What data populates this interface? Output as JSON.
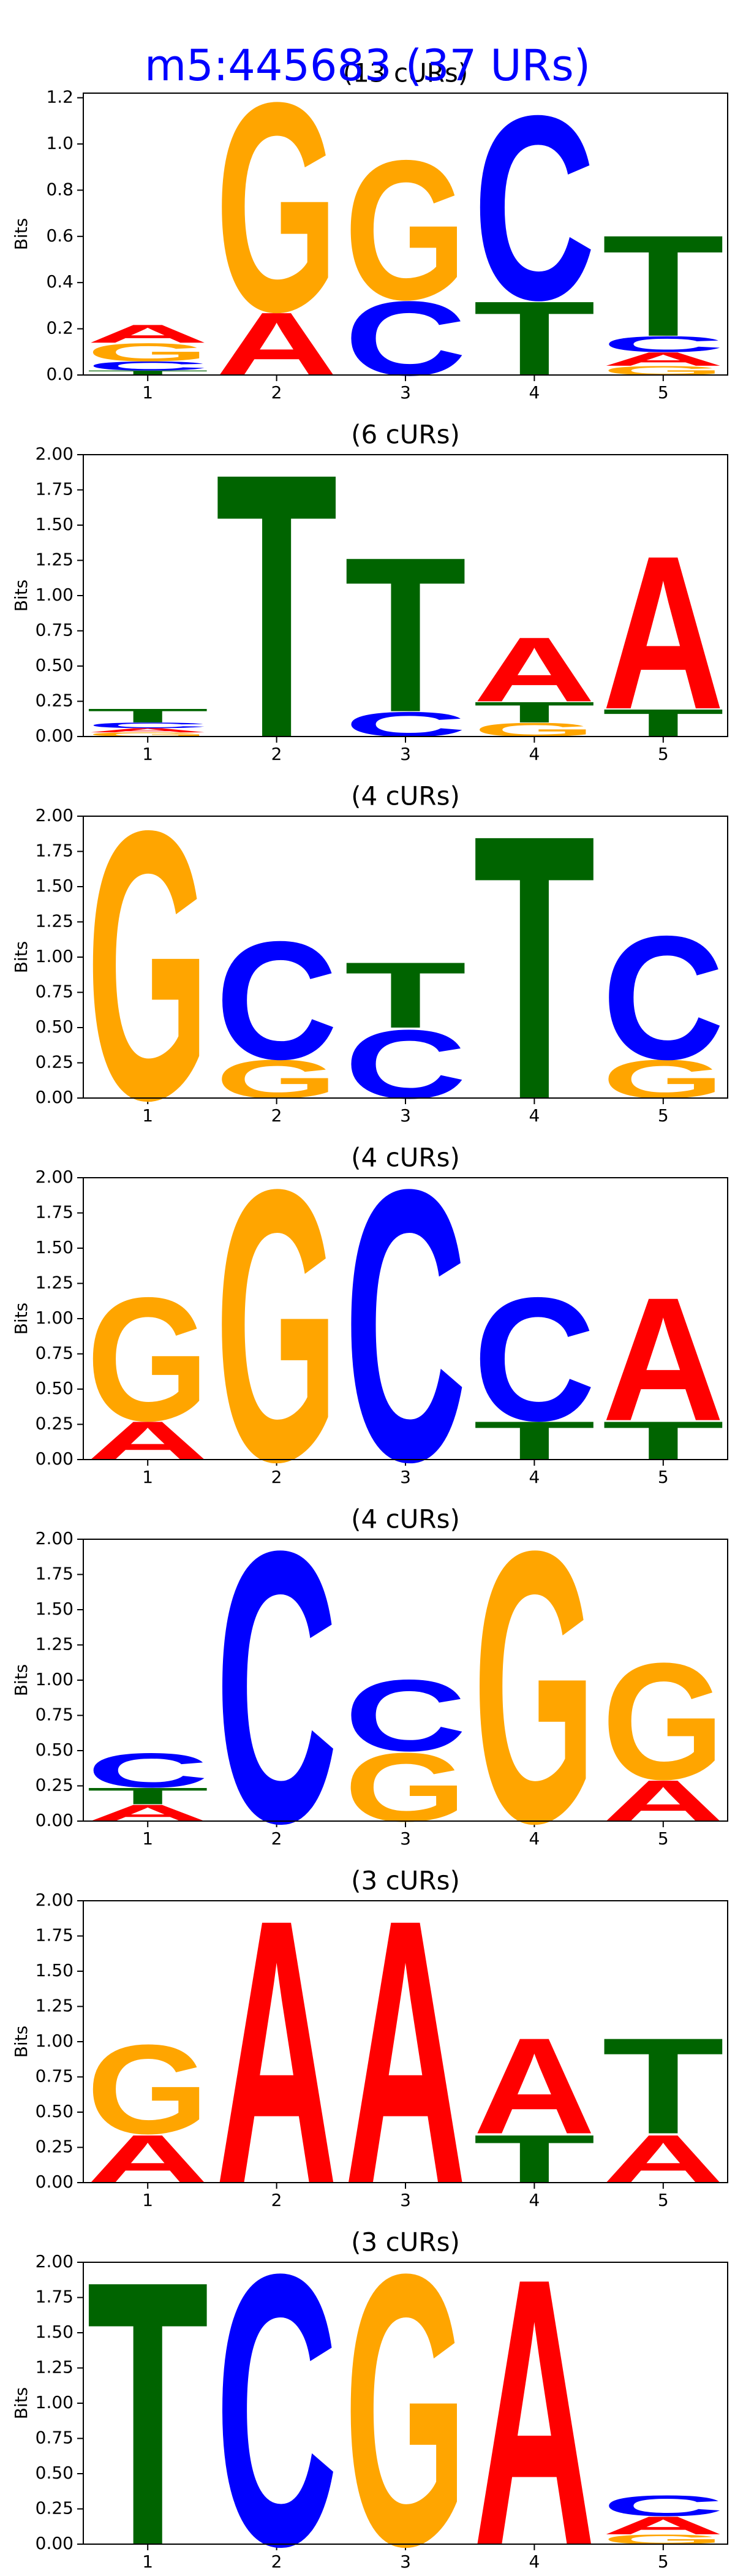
{
  "title": "m5:445683 (37 URs)",
  "title_color": "#0000ff",
  "chart_data": [
    {
      "type": "logo",
      "title": "(13 cURs)",
      "ylabel": "Bits",
      "xlim": [
        0.5,
        5.5
      ],
      "xticks": [
        1,
        2,
        3,
        4,
        5
      ],
      "ylim": [
        0,
        1.22
      ],
      "yticks": [
        {
          "value": 0,
          "label": "0.0"
        },
        0.2,
        0.4,
        0.6,
        0.8,
        {
          "value": 1,
          "label": "1.0"
        },
        1.2
      ],
      "letter_colors": {
        "A": "#ff0000",
        "C": "#0000ff",
        "G": "#ffa500",
        "T": "#006400"
      },
      "stacks": [
        {
          "letters": [
            "T",
            "C",
            "G",
            "A"
          ],
          "values": [
            0.02,
            0.04,
            0.08,
            0.08
          ]
        },
        {
          "letters": [
            "A",
            "G"
          ],
          "values": [
            0.28,
            0.93
          ]
        },
        {
          "letters": [
            "C",
            "G"
          ],
          "values": [
            0.33,
            0.62
          ]
        },
        {
          "letters": [
            "T",
            "C"
          ],
          "values": [
            0.33,
            0.82
          ]
        },
        {
          "letters": [
            "G",
            "A",
            "C",
            "T"
          ],
          "values": [
            0.04,
            0.06,
            0.07,
            0.45
          ]
        }
      ]
    },
    {
      "type": "logo",
      "title": "(6 cURs)",
      "ylabel": "Bits",
      "xlim": [
        0.5,
        5.5
      ],
      "xticks": [
        1,
        2,
        3,
        4,
        5
      ],
      "ylim": [
        0,
        2
      ],
      "yticks": [
        {
          "value": 0,
          "label": "0.00"
        },
        0.25,
        {
          "value": 0.5,
          "label": "0.50"
        },
        0.75,
        {
          "value": 1,
          "label": "1.00"
        },
        1.25,
        {
          "value": 1.5,
          "label": "1.50"
        },
        1.75,
        {
          "value": 2,
          "label": "2.00"
        }
      ],
      "letter_colors": {
        "A": "#ff0000",
        "C": "#0000ff",
        "G": "#ffa500",
        "T": "#006400"
      },
      "stacks": [
        {
          "letters": [
            "G",
            "A",
            "C",
            "T"
          ],
          "values": [
            0.03,
            0.03,
            0.04,
            0.1
          ]
        },
        {
          "letters": [
            "T"
          ],
          "values": [
            1.93
          ]
        },
        {
          "letters": [
            "C",
            "T"
          ],
          "values": [
            0.18,
            1.13
          ]
        },
        {
          "letters": [
            "G",
            "T",
            "A"
          ],
          "values": [
            0.1,
            0.15,
            0.47
          ]
        },
        {
          "letters": [
            "T",
            "A"
          ],
          "values": [
            0.2,
            1.12
          ]
        }
      ]
    },
    {
      "type": "logo",
      "title": "(4 cURs)",
      "ylabel": "Bits",
      "xlim": [
        0.5,
        5.5
      ],
      "xticks": [
        1,
        2,
        3,
        4,
        5
      ],
      "ylim": [
        0,
        2
      ],
      "yticks": [
        {
          "value": 0,
          "label": "0.00"
        },
        0.25,
        {
          "value": 0.5,
          "label": "0.50"
        },
        0.75,
        {
          "value": 1,
          "label": "1.00"
        },
        1.25,
        {
          "value": 1.5,
          "label": "1.50"
        },
        1.75,
        {
          "value": 2,
          "label": "2.00"
        }
      ],
      "letter_colors": {
        "A": "#ff0000",
        "C": "#0000ff",
        "G": "#ffa500",
        "T": "#006400"
      },
      "stacks": [
        {
          "letters": [
            "G"
          ],
          "values": [
            1.96
          ]
        },
        {
          "letters": [
            "G",
            "C"
          ],
          "values": [
            0.28,
            0.86
          ]
        },
        {
          "letters": [
            "C",
            "T"
          ],
          "values": [
            0.5,
            0.48
          ]
        },
        {
          "letters": [
            "T"
          ],
          "values": [
            1.93
          ]
        },
        {
          "letters": [
            "G",
            "C"
          ],
          "values": [
            0.28,
            0.9
          ]
        }
      ]
    },
    {
      "type": "logo",
      "title": "(4 cURs)",
      "ylabel": "Bits",
      "xlim": [
        0.5,
        5.5
      ],
      "xticks": [
        1,
        2,
        3,
        4,
        5
      ],
      "ylim": [
        0,
        2
      ],
      "yticks": [
        {
          "value": 0,
          "label": "0.00"
        },
        0.25,
        {
          "value": 0.5,
          "label": "0.50"
        },
        0.75,
        {
          "value": 1,
          "label": "1.00"
        },
        1.25,
        {
          "value": 1.5,
          "label": "1.50"
        },
        1.75,
        {
          "value": 2,
          "label": "2.00"
        }
      ],
      "letter_colors": {
        "A": "#ff0000",
        "C": "#0000ff",
        "G": "#ffa500",
        "T": "#006400"
      },
      "stacks": [
        {
          "letters": [
            "A",
            "G"
          ],
          "values": [
            0.28,
            0.9
          ]
        },
        {
          "letters": [
            "G"
          ],
          "values": [
            1.98
          ]
        },
        {
          "letters": [
            "C"
          ],
          "values": [
            1.98
          ]
        },
        {
          "letters": [
            "T",
            "C"
          ],
          "values": [
            0.28,
            0.9
          ]
        },
        {
          "letters": [
            "T",
            "A"
          ],
          "values": [
            0.28,
            0.9
          ]
        }
      ]
    },
    {
      "type": "logo",
      "title": "(4 cURs)",
      "ylabel": "Bits",
      "xlim": [
        0.5,
        5.5
      ],
      "xticks": [
        1,
        2,
        3,
        4,
        5
      ],
      "ylim": [
        0,
        2
      ],
      "yticks": [
        {
          "value": 0,
          "label": "0.00"
        },
        0.25,
        {
          "value": 0.5,
          "label": "0.50"
        },
        0.75,
        {
          "value": 1,
          "label": "1.00"
        },
        1.25,
        {
          "value": 1.5,
          "label": "1.50"
        },
        1.75,
        {
          "value": 2,
          "label": "2.00"
        }
      ],
      "letter_colors": {
        "A": "#ff0000",
        "C": "#0000ff",
        "G": "#ffa500",
        "T": "#006400"
      },
      "stacks": [
        {
          "letters": [
            "A",
            "T",
            "C"
          ],
          "values": [
            0.12,
            0.12,
            0.25
          ]
        },
        {
          "letters": [
            "C"
          ],
          "values": [
            1.98
          ]
        },
        {
          "letters": [
            "G",
            "C"
          ],
          "values": [
            0.5,
            0.52
          ]
        },
        {
          "letters": [
            "G"
          ],
          "values": [
            1.98
          ]
        },
        {
          "letters": [
            "A",
            "G"
          ],
          "values": [
            0.3,
            0.85
          ]
        }
      ]
    },
    {
      "type": "logo",
      "title": "(3 cURs)",
      "ylabel": "Bits",
      "xlim": [
        0.5,
        5.5
      ],
      "xticks": [
        1,
        2,
        3,
        4,
        5
      ],
      "ylim": [
        0,
        2
      ],
      "yticks": [
        {
          "value": 0,
          "label": "0.00"
        },
        0.25,
        {
          "value": 0.5,
          "label": "0.50"
        },
        0.75,
        {
          "value": 1,
          "label": "1.00"
        },
        1.25,
        {
          "value": 1.5,
          "label": "1.50"
        },
        1.75,
        {
          "value": 2,
          "label": "2.00"
        }
      ],
      "letter_colors": {
        "A": "#ff0000",
        "C": "#0000ff",
        "G": "#ffa500",
        "T": "#006400"
      },
      "stacks": [
        {
          "letters": [
            "A",
            "G"
          ],
          "values": [
            0.35,
            0.65
          ]
        },
        {
          "letters": [
            "A"
          ],
          "values": [
            1.93
          ]
        },
        {
          "letters": [
            "A"
          ],
          "values": [
            1.93
          ]
        },
        {
          "letters": [
            "T",
            "A"
          ],
          "values": [
            0.35,
            0.7
          ]
        },
        {
          "letters": [
            "A",
            "T"
          ],
          "values": [
            0.35,
            0.7
          ]
        }
      ]
    },
    {
      "type": "logo",
      "title": "(3 cURs)",
      "ylabel": "Bits",
      "xlim": [
        0.5,
        5.5
      ],
      "xticks": [
        1,
        2,
        3,
        4,
        5
      ],
      "ylim": [
        0,
        2
      ],
      "yticks": [
        {
          "value": 0,
          "label": "0.00"
        },
        0.25,
        {
          "value": 0.5,
          "label": "0.50"
        },
        0.75,
        {
          "value": 1,
          "label": "1.00"
        },
        1.25,
        {
          "value": 1.5,
          "label": "1.50"
        },
        1.75,
        {
          "value": 2,
          "label": "2.00"
        }
      ],
      "letter_colors": {
        "A": "#ff0000",
        "C": "#0000ff",
        "G": "#ffa500",
        "T": "#006400"
      },
      "stacks": [
        {
          "letters": [
            "T"
          ],
          "values": [
            1.93
          ]
        },
        {
          "letters": [
            "C"
          ],
          "values": [
            1.98
          ]
        },
        {
          "letters": [
            "G"
          ],
          "values": [
            1.98
          ]
        },
        {
          "letters": [
            "A"
          ],
          "values": [
            1.95
          ]
        },
        {
          "letters": [
            "G",
            "A",
            "C"
          ],
          "values": [
            0.07,
            0.13,
            0.15
          ]
        }
      ]
    }
  ]
}
